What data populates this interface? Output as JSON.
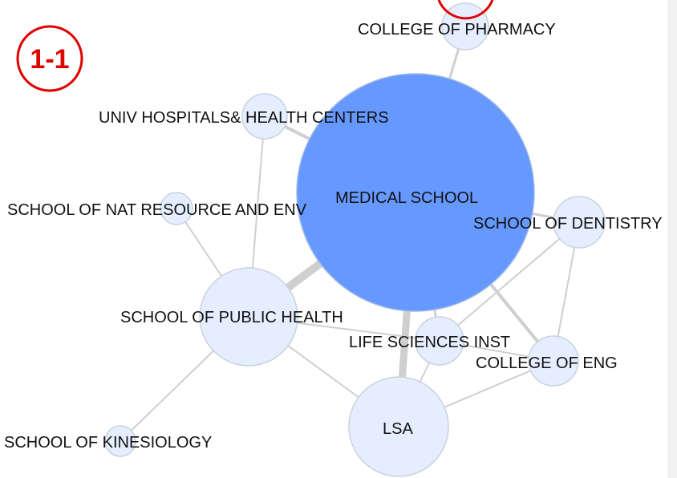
{
  "badge": {
    "label": "1-1",
    "color": "#e00000"
  },
  "colors": {
    "main_node": "#6699ff",
    "minor_node": "#e4eeff",
    "edge": "#cfcfcf"
  },
  "nodes": {
    "pharmacy": "COLLEGE OF PHARMACY",
    "hospitals": "UNIV HOSPITALS& HEALTH CENTERS",
    "natres": "SCHOOL OF NAT RESOURCE AND ENV",
    "medical": "MEDICAL SCHOOL",
    "dentistry": "SCHOOL OF DENTISTRY",
    "publichealth": "SCHOOL OF PUBLIC HEALTH",
    "lifesci": "LIFE SCIENCES INST",
    "eng": "COLLEGE OF ENG",
    "lsa": "LSA",
    "kinesiology": "SCHOOL OF KINESIOLOGY"
  }
}
